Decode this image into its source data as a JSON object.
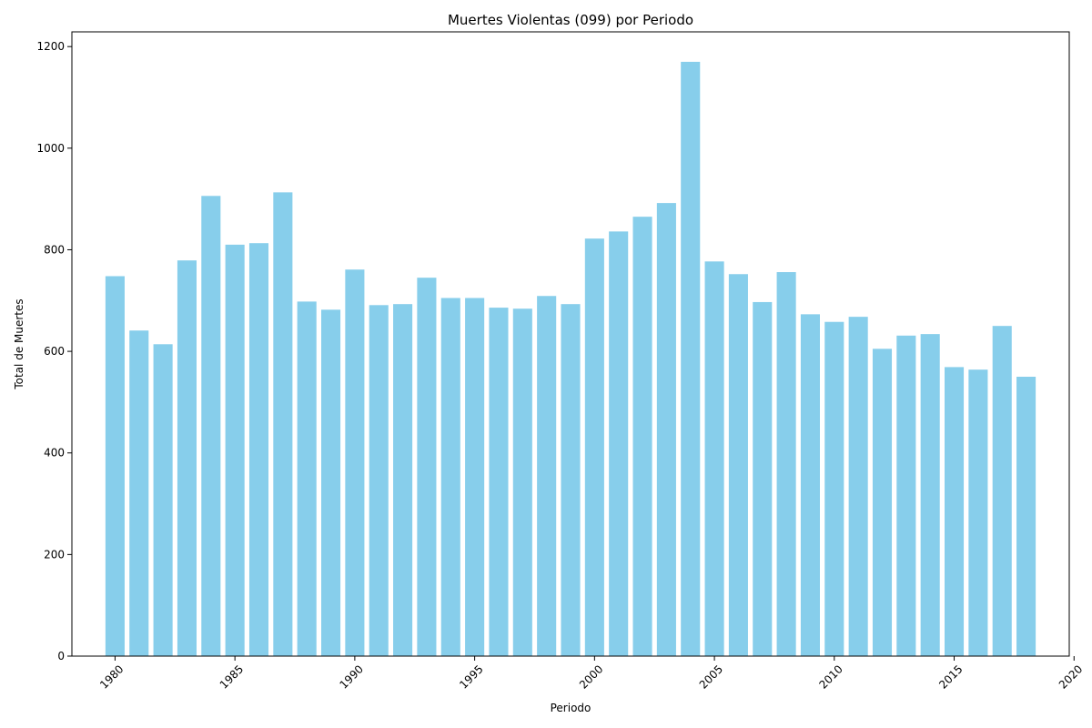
{
  "chart_data": {
    "type": "bar",
    "title": "Muertes Violentas (099) por Periodo",
    "xlabel": "Periodo",
    "ylabel": "Total de Muertes",
    "bar_color": "#87ceeb",
    "x": [
      1980,
      1981,
      1982,
      1983,
      1984,
      1985,
      1986,
      1987,
      1988,
      1989,
      1990,
      1991,
      1992,
      1993,
      1994,
      1995,
      1996,
      1997,
      1998,
      1999,
      2000,
      2001,
      2002,
      2003,
      2004,
      2005,
      2006,
      2007,
      2008,
      2009,
      2010,
      2011,
      2012,
      2013,
      2014,
      2015,
      2016,
      2017,
      2018
    ],
    "values": [
      748,
      641,
      614,
      779,
      906,
      810,
      813,
      913,
      698,
      682,
      761,
      691,
      693,
      745,
      705,
      705,
      686,
      684,
      709,
      693,
      822,
      836,
      865,
      892,
      1170,
      777,
      752,
      697,
      756,
      673,
      658,
      668,
      605,
      631,
      634,
      569,
      564,
      650,
      550
    ],
    "xlim": [
      1978.2,
      2019.8
    ],
    "ylim": [
      0,
      1229
    ],
    "xticks": [
      1980,
      1985,
      1990,
      1995,
      2000,
      2005,
      2010,
      2015,
      2020
    ],
    "yticks": [
      0,
      200,
      400,
      600,
      800,
      1000,
      1200
    ],
    "grid": false,
    "legend": "none"
  }
}
